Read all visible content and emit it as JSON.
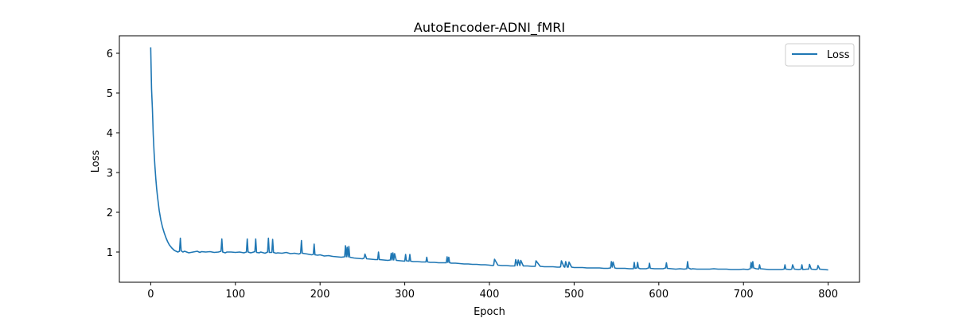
{
  "chart_data": {
    "type": "line",
    "title": "AutoEncoder-ADNI_fMRI",
    "xlabel": "Epoch",
    "ylabel": "Loss",
    "xlim": [
      -37,
      837
    ],
    "ylim": [
      0.24,
      6.44
    ],
    "xticks": [
      0,
      100,
      200,
      300,
      400,
      500,
      600,
      700,
      800
    ],
    "yticks": [
      1,
      2,
      3,
      4,
      5,
      6
    ],
    "grid": false,
    "legend_position": "top-right",
    "series": [
      {
        "name": "Loss",
        "color": "#1f77b4",
        "x": [
          0,
          1,
          2,
          3,
          4,
          5,
          6,
          7,
          8,
          10,
          12,
          14,
          16,
          18,
          20,
          22,
          25,
          28,
          32,
          34,
          35,
          36,
          38,
          40,
          45,
          50,
          55,
          58,
          60,
          65,
          70,
          75,
          80,
          83,
          84,
          85,
          88,
          90,
          95,
          100,
          105,
          110,
          113,
          114,
          115,
          118,
          120,
          123,
          124,
          125,
          128,
          130,
          135,
          138,
          139,
          140,
          143,
          144,
          145,
          148,
          150,
          155,
          160,
          165,
          170,
          175,
          177,
          178,
          179,
          182,
          185,
          190,
          192,
          193,
          194,
          197,
          200,
          205,
          210,
          215,
          220,
          225,
          229,
          230,
          231,
          232,
          233,
          234,
          235,
          240,
          245,
          250,
          252,
          253,
          255,
          260,
          265,
          268,
          269,
          270,
          275,
          280,
          283,
          284,
          285,
          286,
          287,
          288,
          290,
          295,
          300,
          301,
          302,
          305,
          306,
          307,
          310,
          315,
          320,
          325,
          326,
          327,
          330,
          335,
          340,
          345,
          349,
          350,
          351,
          352,
          353,
          355,
          360,
          365,
          370,
          375,
          380,
          385,
          390,
          395,
          400,
          404,
          405,
          406,
          410,
          415,
          420,
          425,
          429,
          430,
          431,
          433,
          434,
          436,
          437,
          440,
          445,
          450,
          453,
          454,
          455,
          460,
          465,
          470,
          475,
          480,
          483,
          484,
          485,
          488,
          489,
          490,
          492,
          493,
          494,
          497,
          500,
          505,
          510,
          515,
          520,
          525,
          530,
          535,
          540,
          543,
          544,
          545,
          546,
          548,
          550,
          555,
          560,
          565,
          570,
          571,
          572,
          574,
          575,
          576,
          578,
          580,
          585,
          588,
          589,
          590,
          595,
          600,
          605,
          608,
          609,
          610,
          615,
          620,
          625,
          630,
          633,
          634,
          635,
          638,
          640,
          645,
          650,
          655,
          660,
          665,
          670,
          675,
          680,
          685,
          690,
          695,
          700,
          705,
          708,
          709,
          710,
          711,
          712,
          715,
          718,
          719,
          720,
          725,
          730,
          735,
          740,
          745,
          748,
          749,
          750,
          755,
          757,
          758,
          760,
          765,
          768,
          769,
          770,
          775,
          777,
          778,
          780,
          785,
          787,
          788,
          790,
          795,
          800
        ],
        "y": [
          6.15,
          5.1,
          4.6,
          3.95,
          3.5,
          3.15,
          2.85,
          2.6,
          2.4,
          2.05,
          1.8,
          1.62,
          1.48,
          1.36,
          1.26,
          1.18,
          1.1,
          1.04,
          1.0,
          1.02,
          1.35,
          1.03,
          1.0,
          1.02,
          0.98,
          1.0,
          1.02,
          0.99,
          1.01,
          1.0,
          1.01,
          0.99,
          1.0,
          1.02,
          1.33,
          1.0,
          0.98,
          1.0,
          1.0,
          0.99,
          1.0,
          0.98,
          1.0,
          1.33,
          1.0,
          0.98,
          0.99,
          1.01,
          1.33,
          0.99,
          0.98,
          1.0,
          0.97,
          1.0,
          1.35,
          0.99,
          0.99,
          1.32,
          0.99,
          0.97,
          0.98,
          0.97,
          0.99,
          0.96,
          0.97,
          0.95,
          0.97,
          1.29,
          0.97,
          0.96,
          0.95,
          0.93,
          0.94,
          1.2,
          0.93,
          0.92,
          0.93,
          0.9,
          0.91,
          0.89,
          0.88,
          0.87,
          0.88,
          1.16,
          0.88,
          1.12,
          0.88,
          1.14,
          0.87,
          0.85,
          0.84,
          0.83,
          0.85,
          0.95,
          0.83,
          0.82,
          0.81,
          0.81,
          1.0,
          0.81,
          0.8,
          0.79,
          0.8,
          0.97,
          0.8,
          0.98,
          0.8,
          0.96,
          0.79,
          0.78,
          0.77,
          0.94,
          0.78,
          0.77,
          0.94,
          0.77,
          0.76,
          0.76,
          0.75,
          0.75,
          0.87,
          0.75,
          0.74,
          0.74,
          0.73,
          0.73,
          0.73,
          0.88,
          0.74,
          0.87,
          0.73,
          0.72,
          0.72,
          0.71,
          0.7,
          0.7,
          0.69,
          0.69,
          0.68,
          0.68,
          0.67,
          0.66,
          0.67,
          0.82,
          0.67,
          0.66,
          0.66,
          0.65,
          0.65,
          0.65,
          0.81,
          0.66,
          0.8,
          0.66,
          0.79,
          0.65,
          0.65,
          0.64,
          0.64,
          0.64,
          0.78,
          0.64,
          0.63,
          0.63,
          0.63,
          0.62,
          0.62,
          0.63,
          0.78,
          0.63,
          0.62,
          0.76,
          0.62,
          0.62,
          0.75,
          0.62,
          0.61,
          0.61,
          0.61,
          0.6,
          0.6,
          0.6,
          0.6,
          0.59,
          0.59,
          0.6,
          0.76,
          0.62,
          0.75,
          0.6,
          0.59,
          0.59,
          0.59,
          0.58,
          0.58,
          0.74,
          0.59,
          0.6,
          0.74,
          0.6,
          0.58,
          0.58,
          0.58,
          0.6,
          0.72,
          0.59,
          0.58,
          0.58,
          0.58,
          0.6,
          0.73,
          0.59,
          0.58,
          0.57,
          0.58,
          0.57,
          0.58,
          0.76,
          0.6,
          0.57,
          0.58,
          0.57,
          0.57,
          0.57,
          0.57,
          0.58,
          0.57,
          0.57,
          0.57,
          0.56,
          0.56,
          0.56,
          0.57,
          0.56,
          0.58,
          0.74,
          0.6,
          0.76,
          0.6,
          0.58,
          0.57,
          0.68,
          0.58,
          0.57,
          0.56,
          0.56,
          0.56,
          0.56,
          0.57,
          0.68,
          0.57,
          0.56,
          0.57,
          0.68,
          0.57,
          0.56,
          0.57,
          0.68,
          0.56,
          0.57,
          0.57,
          0.69,
          0.57,
          0.56,
          0.57,
          0.66,
          0.57,
          0.56,
          0.55
        ]
      }
    ]
  }
}
